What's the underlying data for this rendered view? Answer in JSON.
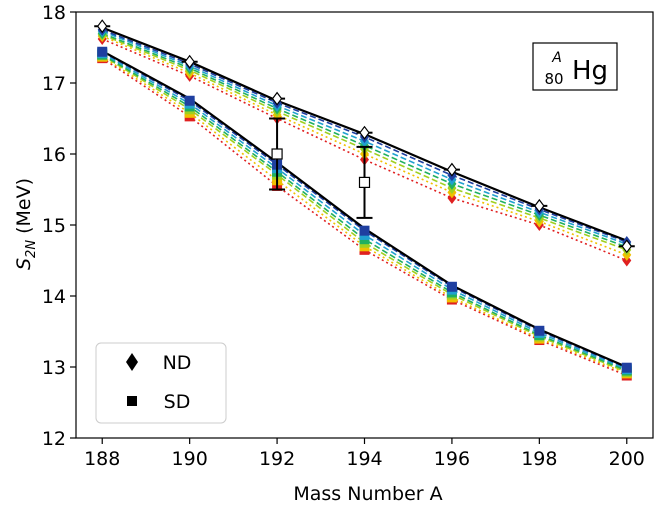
{
  "chart_data": {
    "type": "line",
    "xlabel": "Mass Number A",
    "ylabel": {
      "main": "S",
      "sub": "2N",
      "unit": " (MeV)"
    },
    "xlim": [
      187.4,
      200.6
    ],
    "ylim": [
      12,
      18
    ],
    "xticks": [
      188,
      190,
      192,
      194,
      196,
      198,
      200
    ],
    "yticks": [
      12,
      13,
      14,
      15,
      16,
      17,
      18
    ],
    "annotation": {
      "sup": "A",
      "sub": "80",
      "element": "Hg"
    },
    "legend": {
      "placement": "lower-left",
      "entries": [
        {
          "label": "ND",
          "marker": "diamond"
        },
        {
          "label": "SD",
          "marker": "square"
        }
      ]
    },
    "x": [
      188,
      190,
      192,
      194,
      196,
      198,
      200
    ],
    "series": [
      {
        "group": "ND",
        "color": "#000000",
        "style": "solid",
        "values": [
          17.78,
          17.3,
          16.75,
          16.28,
          15.75,
          15.25,
          14.78
        ]
      },
      {
        "group": "ND",
        "color": "#1f3fa0",
        "style": "dashed",
        "values": [
          17.75,
          17.27,
          16.72,
          16.24,
          15.7,
          15.22,
          14.76
        ]
      },
      {
        "group": "ND",
        "color": "#20a0d0",
        "style": "dashed",
        "values": [
          17.73,
          17.24,
          16.68,
          16.18,
          15.64,
          15.18,
          14.73
        ]
      },
      {
        "group": "ND",
        "color": "#20b060",
        "style": "dashed",
        "values": [
          17.7,
          17.21,
          16.64,
          16.12,
          15.58,
          15.14,
          14.69
        ]
      },
      {
        "group": "ND",
        "color": "#a0d020",
        "style": "dashed",
        "values": [
          17.68,
          17.18,
          16.6,
          16.07,
          15.52,
          15.1,
          14.65
        ]
      },
      {
        "group": "ND",
        "color": "#f0c000",
        "style": "dotted",
        "values": [
          17.66,
          17.14,
          16.55,
          16.0,
          15.46,
          15.05,
          14.58
        ]
      },
      {
        "group": "ND",
        "color": "#e02020",
        "style": "dotted",
        "values": [
          17.62,
          17.1,
          16.5,
          15.92,
          15.38,
          15.0,
          14.5
        ]
      },
      {
        "group": "SD",
        "color": "#000000",
        "style": "solid",
        "values": [
          17.45,
          16.78,
          15.88,
          14.95,
          14.15,
          13.53,
          13.0
        ]
      },
      {
        "group": "SD",
        "color": "#1f3fa0",
        "style": "dashed",
        "values": [
          17.44,
          16.75,
          15.85,
          14.92,
          14.13,
          13.51,
          12.99
        ]
      },
      {
        "group": "SD",
        "color": "#20a0d0",
        "style": "dashed",
        "values": [
          17.42,
          16.71,
          15.8,
          14.86,
          14.09,
          13.48,
          12.97
        ]
      },
      {
        "group": "SD",
        "color": "#20b060",
        "style": "dashed",
        "values": [
          17.4,
          16.67,
          15.75,
          14.8,
          14.05,
          13.45,
          12.95
        ]
      },
      {
        "group": "SD",
        "color": "#a0d020",
        "style": "dashed",
        "values": [
          17.39,
          16.63,
          15.71,
          14.75,
          14.02,
          13.43,
          12.93
        ]
      },
      {
        "group": "SD",
        "color": "#f0c000",
        "style": "dotted",
        "values": [
          17.37,
          16.58,
          15.63,
          14.7,
          13.98,
          13.4,
          12.91
        ]
      },
      {
        "group": "SD",
        "color": "#e02020",
        "style": "dotted",
        "values": [
          17.35,
          16.53,
          15.55,
          14.65,
          13.95,
          13.38,
          12.88
        ]
      }
    ],
    "experimental_nd": {
      "marker": "open-diamond",
      "x": [
        188,
        190,
        192,
        194,
        196,
        198,
        200
      ],
      "y": [
        17.8,
        17.3,
        16.78,
        16.3,
        15.78,
        15.27,
        14.7
      ]
    },
    "experimental_sd": {
      "marker": "open-square",
      "x": [
        192,
        194
      ],
      "y": [
        16.0,
        15.6
      ],
      "err_low": [
        15.5,
        15.1
      ],
      "err_high": [
        16.5,
        16.1
      ]
    }
  }
}
